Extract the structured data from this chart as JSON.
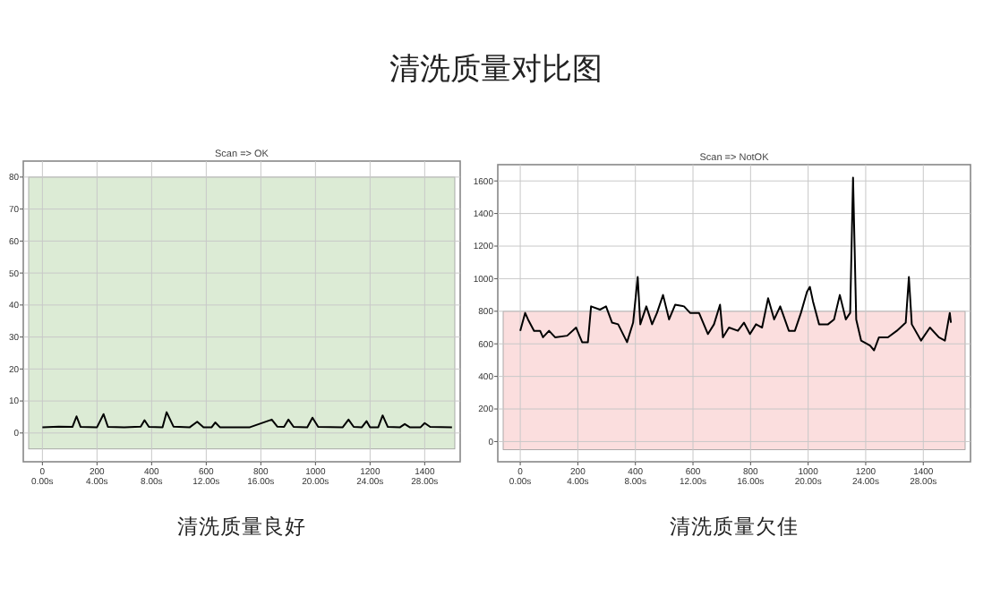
{
  "chart_data": [
    {
      "type": "line",
      "title": "Scan => OK",
      "annotations": [
        "清洗质量对比图",
        "清洗质量良好"
      ],
      "x": [
        0,
        60,
        110,
        125,
        140,
        200,
        224,
        240,
        300,
        360,
        374,
        390,
        440,
        455,
        480,
        540,
        567,
        590,
        620,
        633,
        650,
        760,
        840,
        860,
        885,
        901,
        920,
        970,
        989,
        1010,
        1100,
        1121,
        1140,
        1170,
        1187,
        1200,
        1230,
        1246,
        1265,
        1310,
        1327,
        1345,
        1385,
        1400,
        1420,
        1500
      ],
      "series": [
        {
          "color": "#000000",
          "values": [
            1.8,
            2.0,
            1.9,
            5.2,
            1.9,
            1.8,
            5.9,
            1.9,
            1.8,
            2.0,
            4,
            1.9,
            1.8,
            6.5,
            2.0,
            1.8,
            3.5,
            1.8,
            1.8,
            3.3,
            1.8,
            1.8,
            4.2,
            2.0,
            1.9,
            4.2,
            1.9,
            1.8,
            4.8,
            1.9,
            1.8,
            4.2,
            1.9,
            1.8,
            3.7,
            1.8,
            1.8,
            5.5,
            1.9,
            1.8,
            2.8,
            1.8,
            1.8,
            3.1,
            1.9,
            1.8
          ]
        }
      ],
      "xlim": [
        -70,
        1530
      ],
      "ylim": [
        -9,
        85
      ],
      "xticks": [
        0,
        200,
        400,
        600,
        800,
        1000,
        1200,
        1400
      ],
      "x2lim": [
        -1.4,
        30.6
      ],
      "x2ticks": [
        {
          "value": 0,
          "label": "0.00s"
        },
        {
          "value": 4,
          "label": "4.00s"
        },
        {
          "value": 8,
          "label": "8.00s"
        },
        {
          "value": 12,
          "label": "12.00s"
        },
        {
          "value": 16,
          "label": "16.00s"
        },
        {
          "value": 20,
          "label": "20.00s"
        },
        {
          "value": 24,
          "label": "24.00s"
        },
        {
          "value": 28,
          "label": "28.00s"
        }
      ],
      "yticks": [
        0,
        10,
        20,
        30,
        40,
        50,
        60,
        70,
        80
      ],
      "bands": [
        {
          "axis": "y",
          "from": -5,
          "to": 80,
          "color": "#dcebd5"
        }
      ],
      "grid": true
    },
    {
      "type": "line",
      "title": "Scan => NotOK",
      "annotations": [
        "清洗质量欠佳"
      ],
      "x": [
        0,
        17,
        27,
        48,
        69,
        79,
        100,
        121,
        163,
        194,
        215,
        235,
        246,
        277,
        298,
        319,
        340,
        371,
        392,
        408,
        417,
        438,
        458,
        475,
        496,
        517,
        538,
        569,
        590,
        621,
        652,
        673,
        694,
        704,
        725,
        756,
        777,
        798,
        819,
        840,
        861,
        882,
        903,
        933,
        954,
        975,
        996,
        1006,
        1017,
        1038,
        1069,
        1090,
        1110,
        1131,
        1146,
        1156,
        1167,
        1184,
        1215,
        1229,
        1246,
        1277,
        1308,
        1339,
        1350,
        1360,
        1392,
        1423,
        1454,
        1475,
        1492,
        1496
      ],
      "series": [
        {
          "color": "#000000",
          "values": [
            680,
            790,
            750,
            680,
            680,
            640,
            680,
            640,
            650,
            700,
            610,
            610,
            830,
            810,
            830,
            730,
            720,
            610,
            730,
            1010,
            720,
            830,
            720,
            790,
            900,
            750,
            840,
            830,
            790,
            790,
            660,
            720,
            840,
            640,
            700,
            680,
            730,
            660,
            720,
            700,
            880,
            750,
            830,
            680,
            680,
            790,
            920,
            950,
            860,
            720,
            720,
            750,
            900,
            750,
            790,
            1620,
            750,
            620,
            590,
            560,
            640,
            640,
            680,
            730,
            1010,
            720,
            620,
            700,
            640,
            620,
            790,
            730
          ]
        }
      ],
      "xlim": [
        -78,
        1564
      ],
      "ylim": [
        -124,
        1700
      ],
      "xticks": [
        0,
        200,
        400,
        600,
        800,
        1000,
        1200,
        1400
      ],
      "x2lim": [
        -1.56,
        31.28
      ],
      "x2ticks": [
        {
          "value": 0,
          "label": "0.00s"
        },
        {
          "value": 4,
          "label": "4.00s"
        },
        {
          "value": 8,
          "label": "8.00s"
        },
        {
          "value": 12,
          "label": "12.00s"
        },
        {
          "value": 16,
          "label": "16.00s"
        },
        {
          "value": 20,
          "label": "20.00s"
        },
        {
          "value": 24,
          "label": "24.00s"
        },
        {
          "value": 28,
          "label": "28.00s"
        }
      ],
      "yticks": [
        0,
        200,
        400,
        600,
        800,
        1000,
        1200,
        1400,
        1600
      ],
      "bands": [
        {
          "axis": "y",
          "from": -50,
          "to": 800,
          "color": "#fbdede"
        }
      ],
      "grid": true
    }
  ]
}
